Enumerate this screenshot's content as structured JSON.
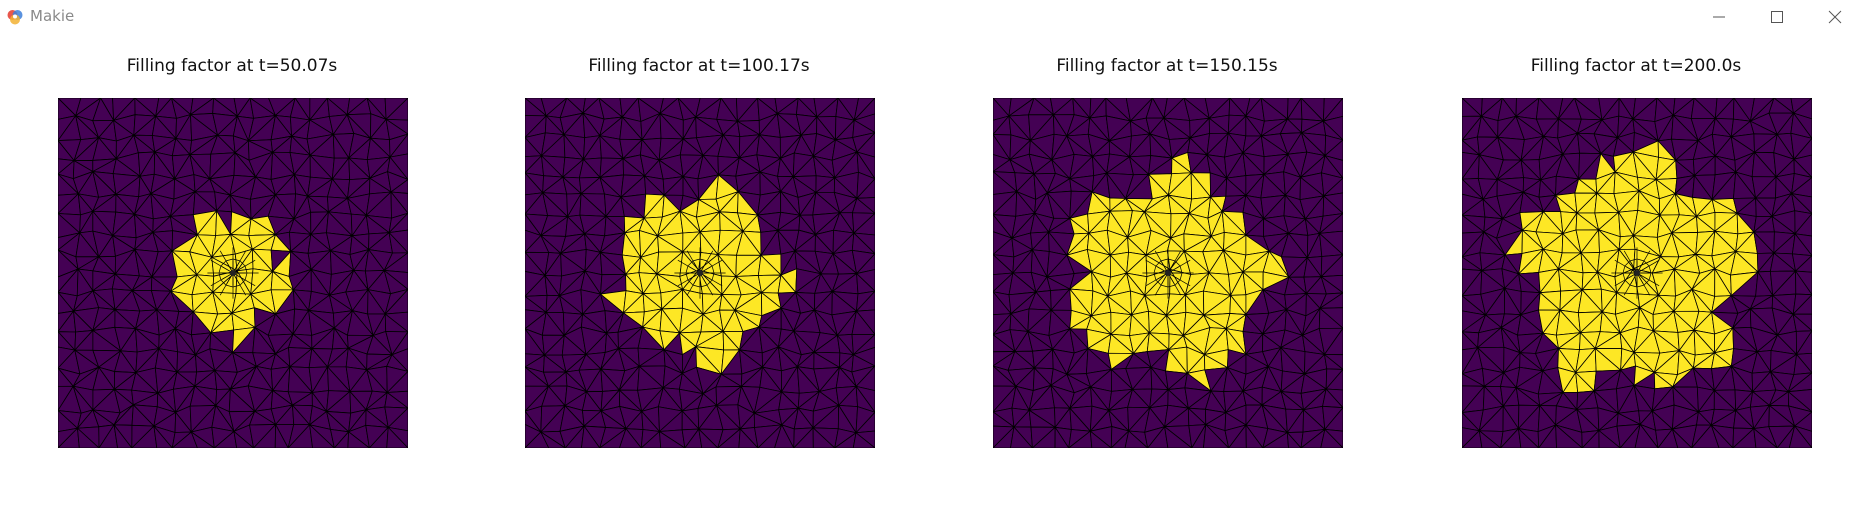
{
  "window": {
    "title": "Makie",
    "icon": "makie-logo-icon",
    "controls": [
      "minimize-icon",
      "maximize-icon",
      "close-icon"
    ]
  },
  "colors": {
    "background_fill": "#440154",
    "filled_region": "#fde725",
    "mesh_edges": "#000000"
  },
  "panels": [
    {
      "title": "Filling factor at t=50.07s",
      "time_s": 50.07,
      "filled_radius_fraction": 0.33
    },
    {
      "title": "Filling factor at t=100.17s",
      "time_s": 100.17,
      "filled_radius_fraction": 0.47
    },
    {
      "title": "Filling factor at t=150.15s",
      "time_s": 150.15,
      "filled_radius_fraction": 0.56
    },
    {
      "title": "Filling factor at t=200.0s",
      "time_s": 200.0,
      "filled_radius_fraction": 0.65
    }
  ]
}
